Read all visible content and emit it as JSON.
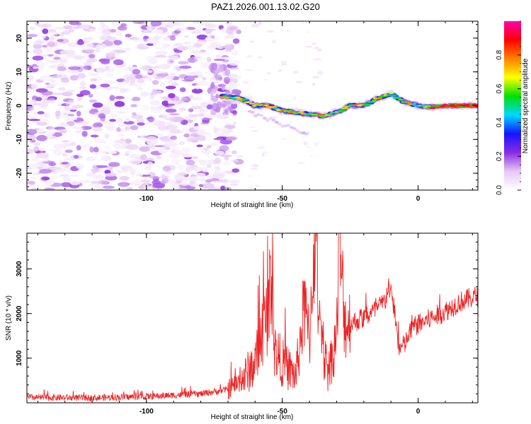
{
  "title": "PAZ1.2026.001.13.02.G20",
  "chart_data": [
    {
      "type": "heatmap",
      "xlabel": "Height of straight line (km)",
      "ylabel": "Frequency (Hz)",
      "xlim": [
        -144,
        22
      ],
      "ylim": [
        -25,
        25
      ],
      "xticks": [
        -100,
        -50,
        0
      ],
      "xtick_labels": [
        "-100",
        "-50",
        "0"
      ],
      "yticks": [
        -20,
        -10,
        0,
        10,
        20
      ],
      "ytick_labels": [
        "-20",
        "-10",
        "0",
        "10",
        "20"
      ],
      "colorbar": {
        "label": "Normalized spectral amplitude",
        "range": [
          0,
          1
        ],
        "ticks": [
          0.0,
          0.2,
          0.4,
          0.6,
          0.8
        ],
        "tick_labels": [
          "0.0",
          "0.2",
          "0.4",
          "0.6",
          "0.8"
        ],
        "colormap": [
          "#ffffff",
          "#e6c8f5",
          "#8a2be2",
          "#1515ff",
          "#00d8ff",
          "#00e000",
          "#ffff00",
          "#ff8000",
          "#ff0000",
          "#ff00b0"
        ]
      },
      "ridge": {
        "description": "signal frequency vs height",
        "x": [
          -74,
          -65,
          -60,
          -55,
          -50,
          -45,
          -40,
          -35,
          -30,
          -25,
          -20,
          -15,
          -10,
          -5,
          0,
          5,
          10,
          22
        ],
        "y": [
          3,
          2,
          0,
          0,
          -1.5,
          -2,
          -2.5,
          -3,
          -2,
          0,
          0,
          2,
          3.5,
          1,
          0,
          -0.5,
          0,
          0
        ]
      }
    },
    {
      "type": "line",
      "xlabel": "Height of straight line (km)",
      "ylabel": "SNR (10 * v/v)",
      "xlim": [
        -144,
        22
      ],
      "ylim": [
        0,
        3800
      ],
      "xticks": [
        -100,
        -50,
        0
      ],
      "xtick_labels": [
        "-100",
        "-50",
        "0"
      ],
      "yticks": [
        1000,
        2000,
        3000
      ],
      "ytick_labels": [
        "1000",
        "2000",
        "3000"
      ],
      "color": "#ee2222",
      "envelope": {
        "x": [
          -144,
          -120,
          -100,
          -80,
          -70,
          -65,
          -60,
          -58,
          -55,
          -54,
          -53,
          -50,
          -45,
          -42,
          -40,
          -38,
          -36,
          -33,
          -30,
          -29,
          -27,
          -24,
          -20,
          -15,
          -12,
          -11,
          -9,
          -7,
          -5,
          -2,
          0,
          5,
          10,
          15,
          22
        ],
        "y": [
          120,
          110,
          140,
          200,
          300,
          500,
          900,
          1400,
          2100,
          3100,
          1200,
          900,
          600,
          2100,
          1400,
          3900,
          1300,
          700,
          1500,
          3600,
          1800,
          1800,
          1900,
          2100,
          2300,
          2650,
          2200,
          1200,
          1300,
          1700,
          1750,
          1900,
          2050,
          2250,
          2400
        ]
      },
      "noise_amplitude": 150
    }
  ]
}
